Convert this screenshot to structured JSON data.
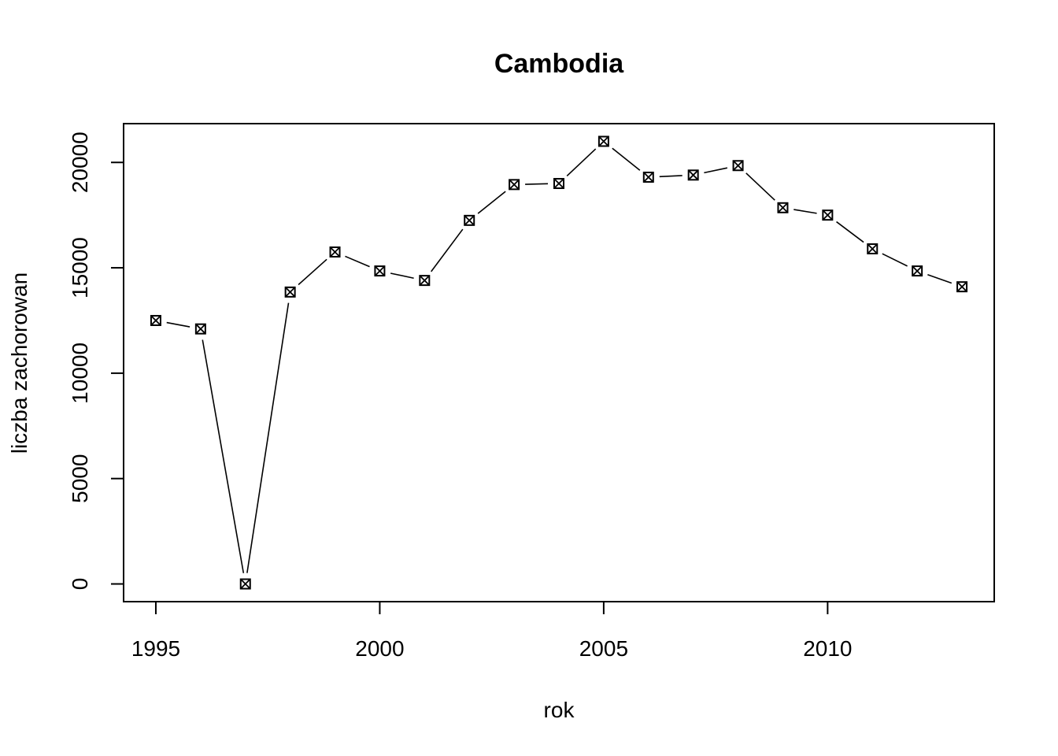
{
  "chart_data": {
    "type": "line",
    "title": "Cambodia",
    "xlabel": "rok",
    "ylabel": "liczba zachorowan",
    "x": [
      1995,
      1996,
      1997,
      1998,
      1999,
      2000,
      2001,
      2002,
      2003,
      2004,
      2005,
      2006,
      2007,
      2008,
      2009,
      2010,
      2011,
      2012,
      2013
    ],
    "series": [
      {
        "values": [
          12500,
          12100,
          0,
          13850,
          15750,
          14850,
          14400,
          17250,
          18950,
          19000,
          21000,
          19300,
          19400,
          19850,
          17850,
          17500,
          15900,
          14850,
          14100
        ]
      }
    ],
    "xlim": [
      1994.28,
      2013.72
    ],
    "ylim": [
      -840,
      21840
    ],
    "x_ticks": [
      1995,
      2000,
      2005,
      2010
    ],
    "y_ticks": [
      0,
      5000,
      10000,
      15000,
      20000
    ],
    "x_tick_labels": [
      "1995",
      "2000",
      "2005",
      "2010"
    ],
    "y_tick_labels": [
      "0",
      "5000",
      "10000",
      "15000",
      "20000"
    ],
    "marker": "box-x",
    "line_style": "overplotted-gaps",
    "grid": false,
    "legend": "none"
  }
}
